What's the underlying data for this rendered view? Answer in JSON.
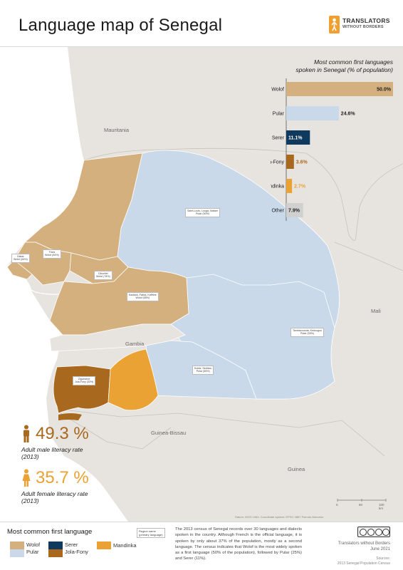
{
  "header": {
    "title": "Language map of Senegal",
    "logo_line1": "TRANSLATORS",
    "logo_line2": "WITHOUT BORDERS"
  },
  "colors": {
    "wolof": "#d4b07f",
    "pular": "#c9d9ea",
    "serer": "#0f3a5e",
    "jola_fony": "#a8681e",
    "mandinka": "#e9a233",
    "other": "#d0d0d0",
    "neighbor_land": "#e7e4df",
    "ocean": "#ffffff"
  },
  "map": {
    "countries": {
      "mauritania": "Mauritania",
      "mali": "Mali",
      "gambia": "Gambia",
      "guinea_bissau": "Guinea-Bissau",
      "guinea": "Guinea"
    },
    "regions": {
      "saint_louis": "Saint-Louis, Louga, Matam\nPular (50%)",
      "thies": "Thies\nWolof (64%)",
      "dakar": "Dakar\nWolof (64%)",
      "diourbel": "Diourbel\nWolof (78%)",
      "kaolack": "Kaolack, Fatick, Kaffrine\nWolof (55%)",
      "tambacounda": "Tambacounda, Kedougou\nPular (53%)",
      "kolda": "Kolda, Sedhiou\nPular (55%)",
      "ziguinchor": "Ziguinchor\nJola-Fony (33%)"
    },
    "datum": "Datum: WGS 1984. Coordinate system: EPSG 3857 Pseudo-Mercator",
    "scale": {
      "ticks": [
        "0",
        "50",
        "100 km"
      ]
    }
  },
  "chart": {
    "title": "Most common first languages\nspoken in Senegal (% of population)",
    "chart_data": {
      "type": "bar",
      "orientation": "horizontal",
      "title": "Most common first languages spoken in Senegal (% of population)",
      "categories": [
        "Wolof",
        "Pular",
        "Serer",
        "Jola-Fony",
        "Mandinka",
        "Other"
      ],
      "values": [
        50.0,
        24.6,
        11.1,
        3.6,
        2.7,
        7.9
      ],
      "labels": [
        "50.0%",
        "24.6%",
        "11.1%",
        "3.6%",
        "2.7%",
        "7.9%"
      ],
      "colors": [
        "#d4b07f",
        "#c9d9ea",
        "#0f3a5e",
        "#a8681e",
        "#e9a233",
        "#d0d0d0"
      ],
      "xlim": [
        0,
        50
      ],
      "grid": false,
      "legend": "none"
    }
  },
  "literacy": {
    "male": {
      "value": "49.3 %",
      "label": "Adult male literacy rate\n(2013)",
      "color": "#a8681e"
    },
    "female": {
      "value": "35.7 %",
      "label": "Adult female literacy rate\n(2013)",
      "color": "#e9a233"
    }
  },
  "legend": {
    "title": "Most common first language",
    "items": [
      {
        "label": "Wolof",
        "color": "#d4b07f"
      },
      {
        "label": "Pular",
        "color": "#c9d9ea"
      },
      {
        "label": "Serer",
        "color": "#0f3a5e"
      },
      {
        "label": "Jola-Fony",
        "color": "#a8681e"
      },
      {
        "label": "Mandinka",
        "color": "#e9a233"
      }
    ],
    "key_box": "Region name\n(primary language)"
  },
  "footer": {
    "description": "The 2013 census of Senegal records over 30 languages and dialects spoken in the country. Although French is the official language, it is spoken by only about 37% of the population, mostly as a second language. The census indicates that Wolof is the most widely spoken as a first language (50% of the population), followed by Pular (25%) and Serer (11%).",
    "org": "Translators without Borders\nJune 2021",
    "sources": "Sources:\n2013 Senegal Population Census"
  }
}
